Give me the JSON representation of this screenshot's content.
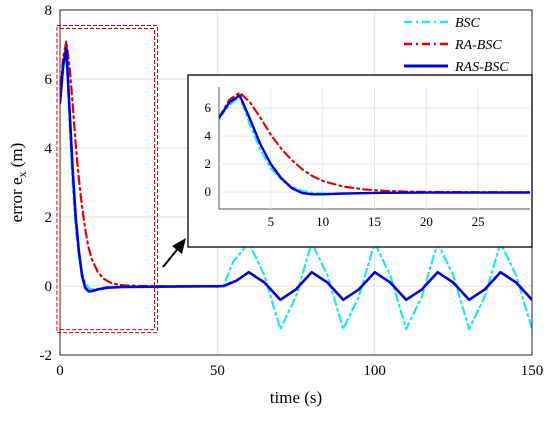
{
  "chart_data": {
    "type": "line",
    "xlabel": "time (s)",
    "ylabel": "error e",
    "ylabel_sub": "x",
    "ylabel_unit": " (m)",
    "xlim": [
      0,
      150
    ],
    "ylim": [
      -2,
      8
    ],
    "xticks": [
      "0",
      "50",
      "100",
      "150"
    ],
    "yticks": [
      "-2",
      "0",
      "2",
      "4",
      "6",
      "8"
    ],
    "grid": true,
    "legend_position": "top-right",
    "colors": {
      "BSC": "#22e5e5",
      "RA-BSC": "#dd0000",
      "RAS-BSC": "#0000dd"
    },
    "series": [
      {
        "name": "BSC",
        "style": "dash-dot",
        "points": [
          [
            0,
            5.3
          ],
          [
            1,
            6.2
          ],
          [
            2,
            6.8
          ],
          [
            3,
            4.8
          ],
          [
            4,
            3.0
          ],
          [
            5,
            1.7
          ],
          [
            6,
            0.9
          ],
          [
            7,
            0.4
          ],
          [
            8,
            0.1
          ],
          [
            9,
            -0.05
          ],
          [
            10,
            -0.1
          ],
          [
            12,
            -0.08
          ],
          [
            15,
            -0.04
          ],
          [
            20,
            -0.02
          ],
          [
            30,
            -0.01
          ],
          [
            45,
            -0.01
          ],
          [
            50,
            -0.01
          ],
          [
            52,
            0.0
          ],
          [
            55,
            0.7
          ],
          [
            60,
            1.25
          ],
          [
            65,
            0.3
          ],
          [
            70,
            -1.25
          ],
          [
            75,
            -0.3
          ],
          [
            80,
            1.25
          ],
          [
            85,
            0.3
          ],
          [
            90,
            -1.25
          ],
          [
            95,
            -0.3
          ],
          [
            100,
            1.25
          ],
          [
            105,
            0.3
          ],
          [
            110,
            -1.25
          ],
          [
            115,
            -0.3
          ],
          [
            120,
            1.25
          ],
          [
            125,
            0.3
          ],
          [
            130,
            -1.25
          ],
          [
            135,
            -0.3
          ],
          [
            140,
            1.25
          ],
          [
            145,
            0.3
          ],
          [
            150,
            -1.25
          ]
        ]
      },
      {
        "name": "RA-BSC",
        "style": "dash-dot",
        "points": [
          [
            0,
            5.3
          ],
          [
            1,
            6.6
          ],
          [
            2,
            7.1
          ],
          [
            3,
            6.4
          ],
          [
            4,
            5.3
          ],
          [
            5,
            4.1
          ],
          [
            6,
            3.1
          ],
          [
            7,
            2.3
          ],
          [
            8,
            1.65
          ],
          [
            9,
            1.15
          ],
          [
            10,
            0.8
          ],
          [
            12,
            0.4
          ],
          [
            14,
            0.2
          ],
          [
            16,
            0.1
          ],
          [
            18,
            0.05
          ],
          [
            20,
            0.02
          ],
          [
            25,
            0.0
          ],
          [
            30,
            -0.01
          ],
          [
            45,
            -0.01
          ],
          [
            50,
            -0.01
          ],
          [
            52,
            0.0
          ],
          [
            56,
            0.15
          ],
          [
            60,
            0.4
          ],
          [
            65,
            0.1
          ],
          [
            70,
            -0.4
          ],
          [
            75,
            -0.1
          ],
          [
            80,
            0.4
          ],
          [
            85,
            0.1
          ],
          [
            90,
            -0.4
          ],
          [
            95,
            -0.1
          ],
          [
            100,
            0.4
          ],
          [
            105,
            0.1
          ],
          [
            110,
            -0.4
          ],
          [
            115,
            -0.1
          ],
          [
            120,
            0.4
          ],
          [
            125,
            0.1
          ],
          [
            130,
            -0.4
          ],
          [
            135,
            -0.1
          ],
          [
            140,
            0.4
          ],
          [
            145,
            0.1
          ],
          [
            150,
            -0.4
          ]
        ]
      },
      {
        "name": "RAS-BSC",
        "style": "solid",
        "points": [
          [
            0,
            5.3
          ],
          [
            1,
            6.4
          ],
          [
            2,
            6.9
          ],
          [
            3,
            5.2
          ],
          [
            4,
            3.4
          ],
          [
            5,
            2.0
          ],
          [
            6,
            1.0
          ],
          [
            7,
            0.3
          ],
          [
            8,
            -0.05
          ],
          [
            9,
            -0.15
          ],
          [
            10,
            -0.15
          ],
          [
            12,
            -0.1
          ],
          [
            15,
            -0.05
          ],
          [
            20,
            -0.03
          ],
          [
            30,
            -0.02
          ],
          [
            45,
            -0.01
          ],
          [
            50,
            -0.01
          ],
          [
            52,
            0.0
          ],
          [
            56,
            0.15
          ],
          [
            60,
            0.4
          ],
          [
            65,
            0.1
          ],
          [
            70,
            -0.4
          ],
          [
            75,
            -0.1
          ],
          [
            80,
            0.4
          ],
          [
            85,
            0.1
          ],
          [
            90,
            -0.4
          ],
          [
            95,
            -0.1
          ],
          [
            100,
            0.4
          ],
          [
            105,
            0.1
          ],
          [
            110,
            -0.4
          ],
          [
            115,
            -0.1
          ],
          [
            120,
            0.4
          ],
          [
            125,
            0.1
          ],
          [
            130,
            -0.4
          ],
          [
            135,
            -0.1
          ],
          [
            140,
            0.4
          ],
          [
            145,
            0.1
          ],
          [
            150,
            -0.4
          ]
        ]
      }
    ],
    "inset": {
      "xlim": [
        0,
        30
      ],
      "ylim": [
        -1.2,
        7.5
      ],
      "xticks": [
        "5",
        "10",
        "15",
        "20",
        "25"
      ],
      "yticks": [
        "0",
        "2",
        "4",
        "6"
      ]
    },
    "highlight_region": {
      "xlim": [
        0,
        31
      ],
      "ylim": [
        -1.35,
        7.55
      ]
    }
  }
}
